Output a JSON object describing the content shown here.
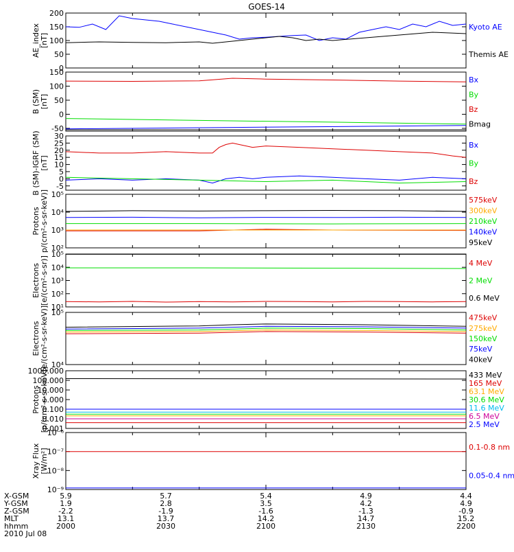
{
  "title": "GOES-14",
  "colors": {
    "black": "#000000",
    "blue": "#0000ff",
    "green": "#00dd00",
    "red": "#dd0000",
    "orange": "#ffaa00",
    "yellow": "#dddd00",
    "cyan": "#00bbee",
    "magenta": "#cc0099"
  },
  "chart_data": [
    {
      "type": "line",
      "id": "ae",
      "ylabel": [
        "AE_index",
        "[nT]"
      ],
      "ylim": [
        0,
        200
      ],
      "scale": "linear",
      "yticks": [
        0,
        50,
        100,
        150,
        200
      ],
      "yticklabels": [
        "0",
        "50",
        "100",
        "150",
        "200"
      ],
      "series": [
        {
          "name": "Kyoto AE",
          "color": "blue",
          "t": [
            0,
            2,
            4,
            6,
            8,
            10,
            12,
            14,
            16,
            18,
            20,
            22,
            24,
            26,
            28,
            30,
            32,
            34,
            36,
            38,
            40,
            42,
            44,
            46,
            48,
            50,
            52,
            54,
            56,
            58,
            60
          ],
          "y": [
            150,
            148,
            160,
            140,
            190,
            180,
            175,
            170,
            160,
            150,
            140,
            130,
            120,
            105,
            110,
            112,
            115,
            118,
            120,
            100,
            110,
            105,
            130,
            140,
            150,
            140,
            160,
            150,
            170,
            155,
            160
          ]
        },
        {
          "name": "Themis AE",
          "color": "black",
          "t": [
            0,
            5,
            10,
            15,
            20,
            22,
            24,
            26,
            28,
            30,
            32,
            34,
            36,
            38,
            40,
            45,
            50,
            55,
            60
          ],
          "y": [
            92,
            95,
            93,
            92,
            95,
            90,
            95,
            100,
            105,
            110,
            115,
            110,
            100,
            105,
            100,
            110,
            120,
            130,
            125
          ]
        }
      ]
    },
    {
      "type": "line",
      "id": "b_sm",
      "ylabel": [
        "B (SM)",
        "[nT]"
      ],
      "ylim": [
        -60,
        150
      ],
      "scale": "linear",
      "yticks": [
        -50,
        0,
        50,
        100,
        150
      ],
      "yticklabels": [
        "-50",
        "0",
        "50",
        "100",
        "150"
      ],
      "series": [
        {
          "name": "Bx",
          "color": "blue",
          "t": [
            0,
            60
          ],
          "y": [
            -52,
            -40
          ]
        },
        {
          "name": "By",
          "color": "green",
          "t": [
            0,
            20,
            40,
            60
          ],
          "y": [
            -15,
            -22,
            -28,
            -35
          ]
        },
        {
          "name": "Bz",
          "color": "red",
          "t": [
            0,
            10,
            20,
            25,
            30,
            40,
            50,
            60
          ],
          "y": [
            118,
            117,
            119,
            128,
            125,
            122,
            118,
            115
          ]
        },
        {
          "name": "Bmag",
          "color": "black",
          "t": [
            0,
            60
          ],
          "y": [
            -55,
            -55
          ]
        }
      ]
    },
    {
      "type": "line",
      "id": "b_igrf",
      "ylabel": [
        "B (SM)-IGRF (SM)",
        "[nT]"
      ],
      "ylim": [
        -8,
        30
      ],
      "scale": "linear",
      "yticks": [
        -5,
        0,
        5,
        10,
        15,
        20,
        25,
        30
      ],
      "yticklabels": [
        "-5",
        "0",
        "5",
        "10",
        "15",
        "20",
        "25",
        "30"
      ],
      "series": [
        {
          "name": "Bx",
          "color": "blue",
          "t": [
            0,
            5,
            10,
            15,
            20,
            22,
            24,
            26,
            28,
            30,
            35,
            40,
            45,
            50,
            55,
            60
          ],
          "y": [
            -1,
            0,
            -1,
            0,
            -1,
            -3,
            0,
            1,
            0,
            1,
            2,
            1,
            0,
            -1,
            1,
            0
          ]
        },
        {
          "name": "By",
          "color": "green",
          "t": [
            0,
            10,
            20,
            30,
            40,
            50,
            60
          ],
          "y": [
            1,
            0,
            -1,
            -2,
            -1,
            -3,
            -2
          ]
        },
        {
          "name": "Bz",
          "color": "red",
          "t": [
            0,
            5,
            10,
            15,
            20,
            22,
            23,
            24,
            25,
            26,
            28,
            30,
            35,
            40,
            45,
            50,
            55,
            58,
            60
          ],
          "y": [
            19,
            18,
            18,
            19,
            18,
            18,
            22,
            24,
            25,
            24,
            22,
            23,
            22,
            21,
            20,
            19,
            18,
            16,
            15
          ]
        }
      ]
    },
    {
      "type": "line",
      "id": "protons_low",
      "ylabel": [
        "Protons",
        "p/(cm²-s-sr-keV)]"
      ],
      "ylim": [
        100,
        100000
      ],
      "scale": "log",
      "yticks": [
        100,
        1000,
        10000,
        100000
      ],
      "yticklabels": [
        "10²",
        "10³",
        "10⁴",
        "10⁵"
      ],
      "series": [
        {
          "name": "575keV",
          "color": "red",
          "t": [
            0,
            20,
            30,
            40,
            60
          ],
          "y": [
            900,
            900,
            1100,
            1000,
            950
          ]
        },
        {
          "name": "300keV",
          "color": "orange",
          "t": [
            0,
            60
          ],
          "y": [
            1000,
            1000
          ]
        },
        {
          "name": "210keV",
          "color": "green",
          "t": [
            0,
            20,
            40,
            60
          ],
          "y": [
            2300,
            2300,
            2200,
            2300
          ]
        },
        {
          "name": "140keV",
          "color": "blue",
          "t": [
            0,
            10,
            20,
            30,
            40,
            50,
            60
          ],
          "y": [
            5000,
            5200,
            4800,
            5100,
            5000,
            5200,
            5000
          ]
        },
        {
          "name": "95keV",
          "color": "black",
          "t": [
            0,
            10,
            20,
            30,
            40,
            50,
            60
          ],
          "y": [
            11000,
            12000,
            11500,
            12000,
            12500,
            12000,
            11000
          ]
        }
      ]
    },
    {
      "type": "line",
      "id": "electrons_high",
      "ylabel": [
        "Electrons",
        "[e/(cm²-s-sr)]"
      ],
      "ylim": [
        10,
        100000
      ],
      "scale": "log",
      "yticks": [
        10,
        100,
        1000,
        10000,
        100000
      ],
      "yticklabels": [
        "10¹",
        "10²",
        "10³",
        "10⁴",
        "10⁵"
      ],
      "series": [
        {
          "name": "4 MeV",
          "color": "red",
          "t": [
            0,
            5,
            10,
            15,
            20,
            25,
            30,
            35,
            40,
            45,
            50,
            55,
            60
          ],
          "y": [
            25,
            24,
            26,
            23,
            25,
            24,
            26,
            25,
            24,
            26,
            25,
            24,
            25
          ]
        },
        {
          "name": "2 MeV",
          "color": "green",
          "t": [
            0,
            20,
            40,
            60
          ],
          "y": [
            9000,
            9000,
            8500,
            8000
          ]
        },
        {
          "name": "0.6 MeV",
          "color": "black",
          "t": [
            0,
            60
          ],
          "y": [
            95000,
            95000
          ]
        }
      ]
    },
    {
      "type": "line",
      "id": "electrons_low",
      "ylabel": [
        "Electrons",
        "[e/(cm²-s-sr-keV)]"
      ],
      "ylim": [
        10000,
        100000
      ],
      "scale": "log",
      "yticks": [
        10000,
        100000
      ],
      "yticklabels": [
        "10⁴",
        "10⁵"
      ],
      "series": [
        {
          "name": "475keV",
          "color": "red",
          "t": [
            0,
            20,
            30,
            45,
            60
          ],
          "y": [
            39000,
            40000,
            43000,
            42000,
            40000
          ]
        },
        {
          "name": "275keV",
          "color": "orange",
          "t": [
            0,
            20,
            30,
            45,
            60
          ],
          "y": [
            42000,
            43000,
            46000,
            45000,
            43000
          ]
        },
        {
          "name": "150keV",
          "color": "green",
          "t": [
            0,
            20,
            30,
            45,
            60
          ],
          "y": [
            45000,
            46000,
            50000,
            49000,
            46000
          ]
        },
        {
          "name": "75keV",
          "color": "blue",
          "t": [
            0,
            20,
            30,
            45,
            60
          ],
          "y": [
            48000,
            50000,
            54000,
            53000,
            50000
          ]
        },
        {
          "name": "40keV",
          "color": "black",
          "t": [
            0,
            20,
            25,
            30,
            45,
            60
          ],
          "y": [
            52000,
            55000,
            58000,
            60000,
            58000,
            54000
          ]
        }
      ]
    },
    {
      "type": "line",
      "id": "protons_high",
      "ylabel": [
        "Protons",
        "[p/(cm²-s-sr-keV)]"
      ],
      "ylim": [
        0.001,
        1000
      ],
      "scale": "log",
      "yticks": [
        0.001,
        0.01,
        0.1,
        1,
        10,
        100,
        1000
      ],
      "yticklabels": [
        "0.001",
        "0.010",
        "0.100",
        "1.000",
        "10.000",
        "100.000",
        "1000.000"
      ],
      "series": [
        {
          "name": "433 MeV",
          "color": "black",
          "t": [
            0,
            60
          ],
          "y": [
            150,
            140
          ]
        },
        {
          "name": "165 MeV",
          "color": "red",
          "t": [
            0,
            60
          ],
          "y": [
            0.004,
            0.004
          ]
        },
        {
          "name": "63.1 MeV",
          "color": "orange",
          "t": [
            0,
            60
          ],
          "y": [
            0.02,
            0.02
          ]
        },
        {
          "name": "30.6 MeV",
          "color": "green",
          "t": [
            0,
            60
          ],
          "y": [
            0.03,
            0.03
          ]
        },
        {
          "name": "11.6 MeV",
          "color": "cyan",
          "t": [
            0,
            60
          ],
          "y": [
            0.05,
            0.05
          ]
        },
        {
          "name": "6.5 MeV",
          "color": "magenta",
          "t": [
            0,
            60
          ],
          "y": [
            0.01,
            0.01
          ]
        },
        {
          "name": "2.5 MeV",
          "color": "blue",
          "t": [
            0,
            60
          ],
          "y": [
            0.1,
            0.1
          ]
        }
      ]
    },
    {
      "type": "line",
      "id": "xray",
      "ylabel": [
        "Xray Flux",
        "[W/m²]"
      ],
      "ylim": [
        1e-09,
        1e-06
      ],
      "scale": "log",
      "yticks": [
        1e-09,
        1e-08,
        1e-07,
        1e-06
      ],
      "yticklabels": [
        "10⁻⁹",
        "10⁻⁸",
        "10⁻⁷",
        "10⁻⁶"
      ],
      "series": [
        {
          "name": "0.1-0.8 nm",
          "color": "red",
          "t": [
            0,
            60
          ],
          "y": [
            1e-07,
            1e-07
          ]
        },
        {
          "name": "0.05-0.4 nm",
          "color": "blue",
          "t": [
            0,
            60
          ],
          "y": [
            1.2e-09,
            1.2e-09
          ]
        }
      ]
    }
  ],
  "ephemeris": {
    "rows": [
      {
        "label": "X-GSM",
        "values": [
          "5.9",
          "5.7",
          "5.4",
          "4.9",
          "4.4"
        ]
      },
      {
        "label": "Y-GSM",
        "values": [
          "1.9",
          "2.8",
          "3.5",
          "4.2",
          "4.9"
        ]
      },
      {
        "label": "Z-GSM",
        "values": [
          "-2.2",
          "-1.9",
          "-1.6",
          "-1.3",
          "-0.9"
        ]
      },
      {
        "label": "MLT",
        "values": [
          "13.1",
          "13.7",
          "14.2",
          "14.7",
          "15.2"
        ]
      },
      {
        "label": "hhmm",
        "values": [
          "2000",
          "2030",
          "2100",
          "2130",
          "2200"
        ]
      }
    ],
    "date": "2010 Jul 08"
  }
}
